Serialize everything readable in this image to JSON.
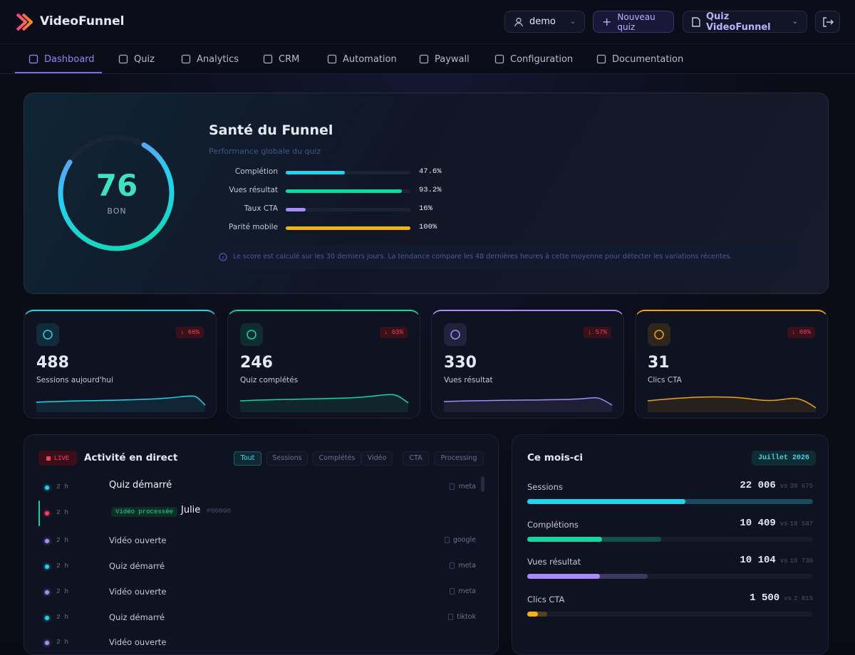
{
  "header": {
    "brand": "VideoFunnel",
    "user": "demo",
    "new_quiz": "Nouveau quiz",
    "quiz": "Quiz VideoFunnel"
  },
  "nav": {
    "items": [
      "Dashboard",
      "Quiz",
      "Analytics",
      "CRM",
      "Automation",
      "Paywall",
      "Configuration",
      "Documentation"
    ],
    "active": 0
  },
  "health": {
    "title": "Santé du Funnel",
    "subtitle": "Performance globale du quiz",
    "score": 76,
    "rating": "BON",
    "metrics": [
      {
        "label": "Complétion",
        "value": 47.6,
        "value_label": "47.6%",
        "color": "#22d3ee"
      },
      {
        "label": "Vues résultat",
        "value": 93.2,
        "value_label": "93.2%",
        "color": "#10d9a0"
      },
      {
        "label": "Taux CTA",
        "value": 16,
        "value_label": "16%",
        "color": "#a78bfa"
      },
      {
        "label": "Parité mobile",
        "value": 100,
        "value_label": "100%",
        "color": "#f5b014"
      }
    ],
    "note": "Le score est calculé sur les 30 derniers jours. La tendance compare les 48 dernières heures à cette moyenne pour détecter les variations récentes."
  },
  "kpis": [
    {
      "value": 488,
      "label": "Sessions aujourd'hui",
      "change": "↓ 66%",
      "color": "#22d3ee"
    },
    {
      "value": 246,
      "label": "Quiz complétés",
      "change": "↓ 63%",
      "color": "#10d9a0"
    },
    {
      "value": 330,
      "label": "Vues résultat",
      "change": "↓ 57%",
      "color": "#a78bfa"
    },
    {
      "value": 31,
      "label": "Clics CTA",
      "change": "↓ 68%",
      "color": "#f5a30b"
    }
  ],
  "activity": {
    "live": "LIVE",
    "title": "Activité en direct",
    "filters": [
      "Tout",
      "Sessions",
      "Complétés",
      "Vidéo",
      "CTA",
      "Processing"
    ],
    "active_filter": 0,
    "items": [
      {
        "time": "2 h",
        "text": "Quiz démarré",
        "source": "meta",
        "color": "#22d3ee"
      },
      {
        "time": "2 h",
        "badge": "Vidéo processée",
        "text": "Julie",
        "code": "#00000",
        "color": "#f43f5e"
      },
      {
        "time": "2 h",
        "text": "Vidéo ouverte",
        "source": "google",
        "color": "#a78bfa"
      },
      {
        "time": "2 h",
        "text": "Quiz démarré",
        "source": "meta",
        "color": "#22d3ee"
      },
      {
        "time": "2 h",
        "text": "Vidéo ouverte",
        "source": "meta",
        "color": "#a78bfa"
      },
      {
        "time": "2 h",
        "text": "Quiz démarré",
        "source": "tiktok",
        "color": "#22d3ee"
      },
      {
        "time": "2 h",
        "text": "Vidéo ouverte",
        "color": "#a78bfa"
      }
    ]
  },
  "month": {
    "title": "Ce mois-ci",
    "period": "Juillet 2026",
    "vs": "vs",
    "rows": [
      {
        "label": "Sessions",
        "value": 22006,
        "value_label": "22 006",
        "previous": 39675,
        "previous_label": "39 675",
        "color": "#22d3ee"
      },
      {
        "label": "Complétions",
        "value": 10409,
        "value_label": "10 409",
        "previous": 18587,
        "previous_label": "18 587",
        "color": "#10d9a0"
      },
      {
        "label": "Vues résultat",
        "value": 10104,
        "value_label": "10 104",
        "previous": 16730,
        "previous_label": "16 730",
        "color": "#a78bfa"
      },
      {
        "label": "Clics CTA",
        "value": 1500,
        "value_label": "1 500",
        "previous": 2815,
        "previous_label": "2 815",
        "color": "#f5b014"
      }
    ]
  }
}
